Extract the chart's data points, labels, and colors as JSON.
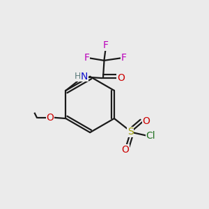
{
  "background_color": "#ebebeb",
  "atom_colors": {
    "C": "#1a1a1a",
    "H": "#5a7a7a",
    "N": "#1010cc",
    "O": "#cc0000",
    "F": "#bb00bb",
    "S": "#999900",
    "Cl": "#207020"
  },
  "bond_color": "#1a1a1a",
  "bond_width": 1.6,
  "font_size_atom": 10,
  "font_size_small": 8.5
}
